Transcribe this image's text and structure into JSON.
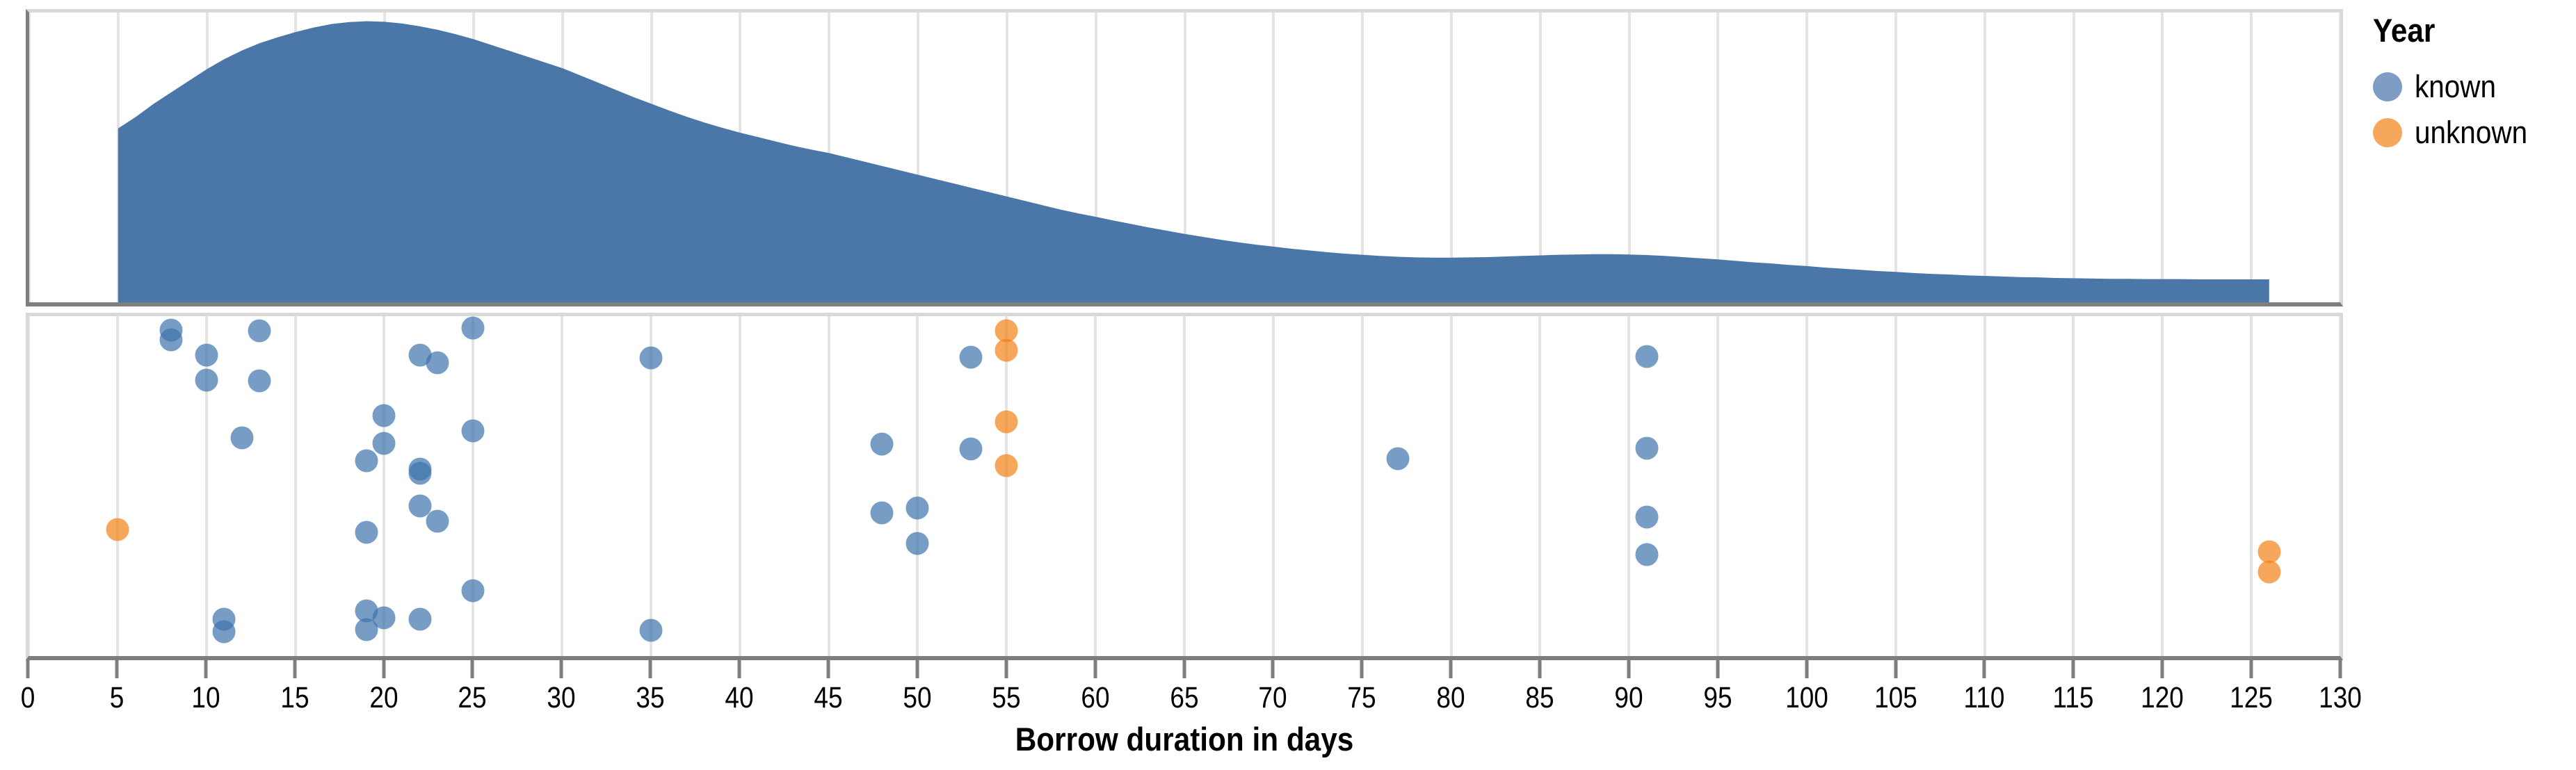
{
  "chart_data": {
    "type": "area",
    "subtype": "raincloud (kde density + jittered strip plot)",
    "title": "",
    "xlabel": "Borrow duration in days",
    "ylabel": "",
    "xlim": [
      0,
      130
    ],
    "x_ticks": [
      0,
      5,
      10,
      15,
      20,
      25,
      30,
      35,
      40,
      45,
      50,
      55,
      60,
      65,
      70,
      75,
      80,
      85,
      90,
      95,
      100,
      105,
      110,
      115,
      120,
      125,
      130
    ],
    "grid": "vertical gridlines at every tick, light gray",
    "legend": {
      "title": "Year",
      "position": "top-right outside plot",
      "items": [
        {
          "label": "known",
          "color": "#7d9dc4"
        },
        {
          "label": "unknown",
          "color": "#f6a75b"
        }
      ]
    },
    "colors": {
      "density_fill": "#4b76a8",
      "known_point_rgba": "rgba(61,116,173,0.7)",
      "unknown_point_rgba": "rgba(242,129,21,0.7)",
      "axis_dark": "#7e7e7e",
      "panel_border_light": "#d9d9d9",
      "gridline": "#e4e4e4"
    },
    "density_range_days": [
      5,
      126
    ],
    "density_profile_day_heightpct": [
      [
        5,
        60
      ],
      [
        6,
        64
      ],
      [
        7,
        68.5
      ],
      [
        8,
        72.5
      ],
      [
        9,
        76.5
      ],
      [
        10,
        80.5
      ],
      [
        11,
        84
      ],
      [
        12,
        87
      ],
      [
        13,
        89.5
      ],
      [
        14,
        91.5
      ],
      [
        15,
        93.3
      ],
      [
        16,
        94.8
      ],
      [
        17,
        96
      ],
      [
        18,
        96.7
      ],
      [
        19,
        97
      ],
      [
        20,
        96.8
      ],
      [
        21,
        96.2
      ],
      [
        22,
        95.2
      ],
      [
        23,
        94
      ],
      [
        24,
        92.5
      ],
      [
        25,
        90.8
      ],
      [
        26,
        88.8
      ],
      [
        27,
        86.8
      ],
      [
        28,
        84.8
      ],
      [
        29,
        82.8
      ],
      [
        30,
        80.8
      ],
      [
        31,
        78.3
      ],
      [
        32,
        75.8
      ],
      [
        33,
        73.3
      ],
      [
        34,
        70.8
      ],
      [
        35,
        68.5
      ],
      [
        36,
        66.2
      ],
      [
        37,
        64
      ],
      [
        38,
        62
      ],
      [
        39,
        60.2
      ],
      [
        40,
        58.5
      ],
      [
        41,
        57
      ],
      [
        42,
        55.5
      ],
      [
        43,
        54
      ],
      [
        44,
        52.7
      ],
      [
        45,
        51.5
      ],
      [
        46,
        50
      ],
      [
        47,
        48.5
      ],
      [
        48,
        47
      ],
      [
        49,
        45.5
      ],
      [
        50,
        44
      ],
      [
        51,
        42.5
      ],
      [
        52,
        41
      ],
      [
        53,
        39.5
      ],
      [
        54,
        38
      ],
      [
        55,
        36.5
      ],
      [
        56,
        35
      ],
      [
        57,
        33.5
      ],
      [
        58,
        32
      ],
      [
        59,
        30.7
      ],
      [
        60,
        29.5
      ],
      [
        61,
        28.2
      ],
      [
        62,
        27
      ],
      [
        63,
        25.8
      ],
      [
        64,
        24.7
      ],
      [
        65,
        23.6
      ],
      [
        66,
        22.6
      ],
      [
        67,
        21.6
      ],
      [
        68,
        20.7
      ],
      [
        69,
        19.9
      ],
      [
        70,
        19.2
      ],
      [
        71,
        18.5
      ],
      [
        72,
        17.9
      ],
      [
        73,
        17.3
      ],
      [
        74,
        16.8
      ],
      [
        75,
        16.4
      ],
      [
        76,
        16
      ],
      [
        77,
        15.7
      ],
      [
        78,
        15.5
      ],
      [
        79,
        15.4
      ],
      [
        80,
        15.4
      ],
      [
        81,
        15.5
      ],
      [
        82,
        15.6
      ],
      [
        83,
        15.8
      ],
      [
        84,
        16
      ],
      [
        85,
        16.2
      ],
      [
        86,
        16.4
      ],
      [
        87,
        16.5
      ],
      [
        88,
        16.6
      ],
      [
        89,
        16.6
      ],
      [
        90,
        16.5
      ],
      [
        91,
        16.3
      ],
      [
        92,
        16
      ],
      [
        93,
        15.6
      ],
      [
        94,
        15.2
      ],
      [
        95,
        14.8
      ],
      [
        96,
        14.3
      ],
      [
        97,
        13.8
      ],
      [
        98,
        13.4
      ],
      [
        99,
        12.9
      ],
      [
        100,
        12.5
      ],
      [
        101,
        12
      ],
      [
        102,
        11.6
      ],
      [
        103,
        11.2
      ],
      [
        104,
        10.8
      ],
      [
        105,
        10.5
      ],
      [
        106,
        10.1
      ],
      [
        107,
        9.8
      ],
      [
        108,
        9.6
      ],
      [
        109,
        9.3
      ],
      [
        110,
        9.1
      ],
      [
        111,
        8.9
      ],
      [
        112,
        8.7
      ],
      [
        113,
        8.6
      ],
      [
        114,
        8.4
      ],
      [
        115,
        8.3
      ],
      [
        116,
        8.2
      ],
      [
        117,
        8.1
      ],
      [
        118,
        8.1
      ],
      [
        119,
        8
      ],
      [
        120,
        8
      ],
      [
        121,
        8
      ],
      [
        122,
        7.9
      ],
      [
        123,
        7.9
      ],
      [
        124,
        7.9
      ],
      [
        125,
        7.9
      ],
      [
        126,
        7.9
      ]
    ],
    "points_known_day_yjitterpct": [
      [
        8,
        4
      ],
      [
        8,
        7
      ],
      [
        13,
        4.2
      ],
      [
        10,
        11.4
      ],
      [
        10,
        18.8
      ],
      [
        13,
        19
      ],
      [
        12,
        35.7
      ],
      [
        11,
        89.1
      ],
      [
        11,
        92.9
      ],
      [
        25,
        3.4
      ],
      [
        22,
        11.4
      ],
      [
        23,
        13.6
      ],
      [
        20,
        29.3
      ],
      [
        25,
        33.7
      ],
      [
        20,
        37.5
      ],
      [
        19,
        42.6
      ],
      [
        22,
        44.9
      ],
      [
        22,
        46.2
      ],
      [
        22,
        55.8
      ],
      [
        23,
        60.4
      ],
      [
        19,
        63.5
      ],
      [
        25,
        80.7
      ],
      [
        19,
        86.8
      ],
      [
        20,
        88.8
      ],
      [
        19,
        92.2
      ],
      [
        22,
        89.2
      ],
      [
        35,
        12.2
      ],
      [
        35,
        92.4
      ],
      [
        48,
        37.7
      ],
      [
        48,
        57.8
      ],
      [
        50,
        56.4
      ],
      [
        50,
        66.8
      ],
      [
        53,
        12
      ],
      [
        53,
        39
      ],
      [
        77,
        42
      ],
      [
        91,
        11.8
      ],
      [
        91,
        38.8
      ],
      [
        91,
        59.2
      ],
      [
        91,
        70.2
      ]
    ],
    "points_unknown_day_yjitterpct": [
      [
        5,
        62.7
      ],
      [
        55,
        4.2
      ],
      [
        55,
        10
      ],
      [
        55,
        31.1
      ],
      [
        55,
        43.9
      ],
      [
        126,
        69.3
      ],
      [
        126,
        75.3
      ]
    ]
  }
}
